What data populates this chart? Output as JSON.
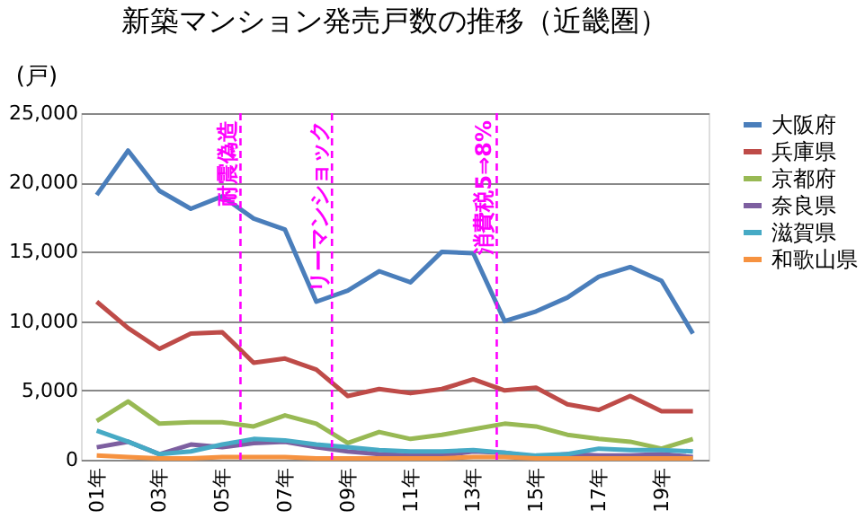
{
  "chart_data": {
    "type": "line",
    "title": "新築マンション発売戸数の推移（近畿圏）",
    "ylabel": "(戸)",
    "x": [
      "2001",
      "2002",
      "2003",
      "2004",
      "2005",
      "2006",
      "2007",
      "2008",
      "2009",
      "2010",
      "2011",
      "2012",
      "2013",
      "2014",
      "2015",
      "2016",
      "2017",
      "2018",
      "2019",
      "2020"
    ],
    "xlim": [
      "2000-07",
      "2020-07"
    ],
    "xticks": [
      {
        "value": "2001",
        "label": "01年"
      },
      {
        "value": "2003",
        "label": "03年"
      },
      {
        "value": "2005",
        "label": "05年"
      },
      {
        "value": "2007",
        "label": "07年"
      },
      {
        "value": "2009",
        "label": "09年"
      },
      {
        "value": "2011",
        "label": "11年"
      },
      {
        "value": "2013",
        "label": "13年"
      },
      {
        "value": "2015",
        "label": "15年"
      },
      {
        "value": "2017",
        "label": "17年"
      },
      {
        "value": "2019",
        "label": "19年"
      }
    ],
    "ylim": [
      0,
      25000
    ],
    "yticks": [
      0,
      {
        "value": 5000,
        "label": "5,000"
      },
      {
        "value": 10000,
        "label": "10,000"
      },
      {
        "value": 15000,
        "label": "15,000"
      },
      {
        "value": 20000,
        "label": "20,000"
      },
      {
        "value": 25000,
        "label": "25,000"
      }
    ],
    "grid": "y",
    "legend": "right",
    "line_style": "solid",
    "marker": "none",
    "series": [
      {
        "name": "大阪府",
        "color": "#4a7ebb",
        "values": [
          19100,
          22300,
          19400,
          18100,
          19000,
          17400,
          16600,
          11400,
          12200,
          13600,
          12800,
          15000,
          14900,
          10000,
          10700,
          11700,
          13200,
          13900,
          12900,
          9100
        ]
      },
      {
        "name": "兵庫県",
        "color": "#be4b48",
        "values": [
          11400,
          9500,
          8000,
          9100,
          9200,
          7000,
          7300,
          6500,
          4600,
          5100,
          4800,
          5100,
          5800,
          5000,
          5200,
          4000,
          3600,
          4600,
          3500,
          3500
        ]
      },
      {
        "name": "京都府",
        "color": "#98b954",
        "values": [
          2800,
          4200,
          2600,
          2700,
          2700,
          2400,
          3200,
          2600,
          1200,
          2000,
          1500,
          1800,
          2200,
          2600,
          2400,
          1800,
          1500,
          1300,
          800,
          1500
        ]
      },
      {
        "name": "奈良県",
        "color": "#7d5fa0",
        "values": [
          900,
          1300,
          400,
          1100,
          900,
          1200,
          1300,
          900,
          600,
          400,
          300,
          300,
          600,
          500,
          200,
          400,
          300,
          300,
          400,
          200
        ]
      },
      {
        "name": "滋賀県",
        "color": "#46aac5",
        "values": [
          2100,
          1300,
          400,
          600,
          1100,
          1500,
          1400,
          1100,
          900,
          700,
          600,
          600,
          700,
          500,
          300,
          400,
          800,
          700,
          700,
          600
        ]
      },
      {
        "name": "和歌山県",
        "color": "#f69240",
        "values": [
          300,
          200,
          100,
          100,
          200,
          200,
          200,
          100,
          100,
          100,
          100,
          100,
          200,
          200,
          100,
          100,
          100,
          100,
          100,
          100
        ]
      }
    ],
    "ref_lines": [
      {
        "axis": "x",
        "value": "2005-08",
        "label": "耐震偽造",
        "color": "#ff00ff",
        "line_style": "dashed"
      },
      {
        "axis": "x",
        "value": "2008-07",
        "label": "リーマンショック",
        "color": "#ff00ff",
        "line_style": "dashed"
      },
      {
        "axis": "x",
        "value": "2013-10",
        "label": "消費税5⇒8%",
        "color": "#ff00ff",
        "line_style": "dashed"
      }
    ]
  }
}
